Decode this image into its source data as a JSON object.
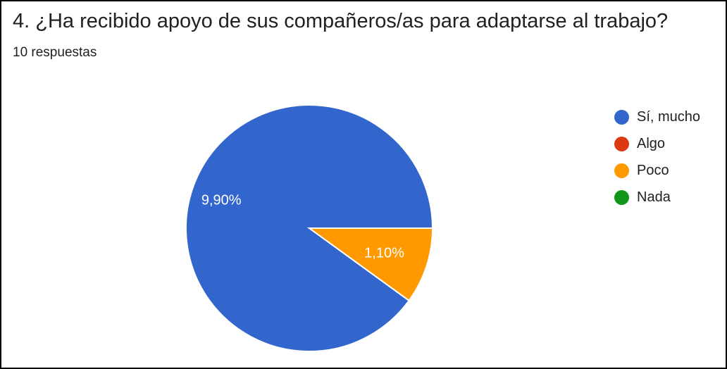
{
  "title": "4. ¿Ha recibido apoyo de sus compañeros/as para adaptarse al trabajo?",
  "subtitle": "10 respuestas",
  "chart_data": {
    "type": "pie",
    "categories": [
      "Sí, mucho",
      "Algo",
      "Poco",
      "Nada"
    ],
    "values": [
      9,
      0,
      1,
      0
    ],
    "data_labels": [
      "9,90%",
      "",
      "1,10%",
      ""
    ],
    "colors": [
      "#3366cc",
      "#dc3912",
      "#ff9900",
      "#109618"
    ],
    "legend_position": "right"
  }
}
